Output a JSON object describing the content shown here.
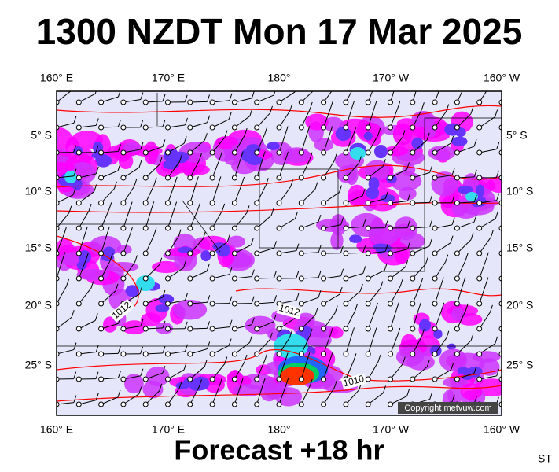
{
  "title": "1300 NZDT Mon 17 Mar 2025",
  "footer": "Forecast +18 hr",
  "corner_label": "ST",
  "longitude_labels": [
    "160° E",
    "170° E",
    "180°",
    "170° W",
    "160° W"
  ],
  "latitude_labels": [
    "5° S",
    "10° S",
    "15° S",
    "20° S",
    "25° S"
  ],
  "isobar_labels": [
    "1012",
    "1012",
    "1010"
  ],
  "copyright": "Copyright metvuw.com"
}
